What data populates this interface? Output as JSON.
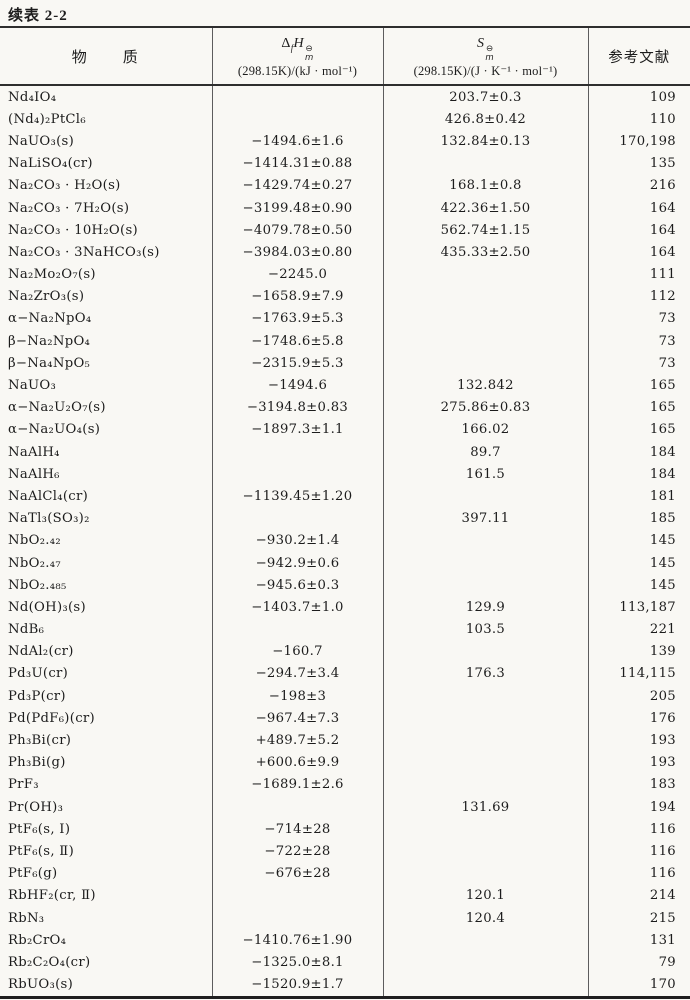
{
  "page": {
    "title": "续表 2-2"
  },
  "table": {
    "columns": {
      "substance": "物　　质",
      "enthalpy": {
        "delta": "Δ",
        "sub": "f",
        "symbol": "H",
        "sup": "⊖",
        "msub": "m",
        "units": "(298.15K)/(kJ · mol⁻¹)"
      },
      "entropy": {
        "symbol": "S",
        "sup": "⊖",
        "msub": "m",
        "units": "(298.15K)/(J · K⁻¹ · mol⁻¹)"
      },
      "refs": "参考文献"
    },
    "rows": [
      {
        "name": "Nd₄IO₄",
        "dh": "",
        "s": "203.7±0.3",
        "ref": "109"
      },
      {
        "name": "(Nd₄)₂PtCl₆",
        "dh": "",
        "s": "426.8±0.42",
        "ref": "110"
      },
      {
        "name": "NaUO₃(s)",
        "dh": "−1494.6±1.6",
        "s": "132.84±0.13",
        "ref": "170,198"
      },
      {
        "name": "NaLiSO₄(cr)",
        "dh": "−1414.31±0.88",
        "s": "",
        "ref": "135"
      },
      {
        "name": "Na₂CO₃ · H₂O(s)",
        "dh": "−1429.74±0.27",
        "s": "168.1±0.8",
        "ref": "216"
      },
      {
        "name": "Na₂CO₃ · 7H₂O(s)",
        "dh": "−3199.48±0.90",
        "s": "422.36±1.50",
        "ref": "164"
      },
      {
        "name": "Na₂CO₃ · 10H₂O(s)",
        "dh": "−4079.78±0.50",
        "s": "562.74±1.15",
        "ref": "164"
      },
      {
        "name": "Na₂CO₃ · 3NaHCO₃(s)",
        "dh": "−3984.03±0.80",
        "s": "435.33±2.50",
        "ref": "164"
      },
      {
        "name": "Na₂Mo₂O₇(s)",
        "dh": "−2245.0",
        "s": "",
        "ref": "111"
      },
      {
        "name": "Na₂ZrO₃(s)",
        "dh": "−1658.9±7.9",
        "s": "",
        "ref": "112"
      },
      {
        "name": "α−Na₂NpO₄",
        "dh": "−1763.9±5.3",
        "s": "",
        "ref": "73"
      },
      {
        "name": "β−Na₂NpO₄",
        "dh": "−1748.6±5.8",
        "s": "",
        "ref": "73"
      },
      {
        "name": "β−Na₄NpO₅",
        "dh": "−2315.9±5.3",
        "s": "",
        "ref": "73"
      },
      {
        "name": "NaUO₃",
        "dh": "−1494.6",
        "s": "132.842",
        "ref": "165"
      },
      {
        "name": "α−Na₂U₂O₇(s)",
        "dh": "−3194.8±0.83",
        "s": "275.86±0.83",
        "ref": "165"
      },
      {
        "name": "α−Na₂UO₄(s)",
        "dh": "−1897.3±1.1",
        "s": "166.02",
        "ref": "165"
      },
      {
        "name": "NaAlH₄",
        "dh": "",
        "s": "89.7",
        "ref": "184"
      },
      {
        "name": "NaAlH₆",
        "dh": "",
        "s": "161.5",
        "ref": "184"
      },
      {
        "name": "NaAlCl₄(cr)",
        "dh": "−1139.45±1.20",
        "s": "",
        "ref": "181"
      },
      {
        "name": "NaTl₃(SO₃)₂",
        "dh": "",
        "s": "397.11",
        "ref": "185"
      },
      {
        "name": "NbO₂.₄₂",
        "dh": "−930.2±1.4",
        "s": "",
        "ref": "145"
      },
      {
        "name": "NbO₂.₄₇",
        "dh": "−942.9±0.6",
        "s": "",
        "ref": "145"
      },
      {
        "name": "NbO₂.₄₈₅",
        "dh": "−945.6±0.3",
        "s": "",
        "ref": "145"
      },
      {
        "name": "Nd(OH)₃(s)",
        "dh": "−1403.7±1.0",
        "s": "129.9",
        "ref": "113,187"
      },
      {
        "name": "NdB₆",
        "dh": "",
        "s": "103.5",
        "ref": "221"
      },
      {
        "name": "NdAl₂(cr)",
        "dh": "−160.7",
        "s": "",
        "ref": "139"
      },
      {
        "name": "Pd₃U(cr)",
        "dh": "−294.7±3.4",
        "s": "176.3",
        "ref": "114,115"
      },
      {
        "name": "Pd₃P(cr)",
        "dh": "−198±3",
        "s": "",
        "ref": "205"
      },
      {
        "name": "Pd(PdF₆)(cr)",
        "dh": "−967.4±7.3",
        "s": "",
        "ref": "176"
      },
      {
        "name": "Ph₃Bi(cr)",
        "dh": "+489.7±5.2",
        "s": "",
        "ref": "193"
      },
      {
        "name": "Ph₃Bi(g)",
        "dh": "+600.6±9.9",
        "s": "",
        "ref": "193"
      },
      {
        "name": "PrF₃",
        "dh": "−1689.1±2.6",
        "s": "",
        "ref": "183"
      },
      {
        "name": "Pr(OH)₃",
        "dh": "",
        "s": "131.69",
        "ref": "194"
      },
      {
        "name": "PtF₆(s, Ⅰ)",
        "dh": "−714±28",
        "s": "",
        "ref": "116"
      },
      {
        "name": "PtF₆(s, Ⅱ)",
        "dh": "−722±28",
        "s": "",
        "ref": "116"
      },
      {
        "name": "PtF₆(g)",
        "dh": "−676±28",
        "s": "",
        "ref": "116"
      },
      {
        "name": "RbHF₂(cr, Ⅱ)",
        "dh": "",
        "s": "120.1",
        "ref": "214"
      },
      {
        "name": "RbN₃",
        "dh": "",
        "s": "120.4",
        "ref": "215"
      },
      {
        "name": "Rb₂CrO₄",
        "dh": "−1410.76±1.90",
        "s": "",
        "ref": "131"
      },
      {
        "name": "Rb₂C₂O₄(cr)",
        "dh": "−1325.0±8.1",
        "s": "",
        "ref": "79"
      },
      {
        "name": "RbUO₃(s)",
        "dh": "−1520.9±1.7",
        "s": "",
        "ref": "170"
      }
    ]
  }
}
